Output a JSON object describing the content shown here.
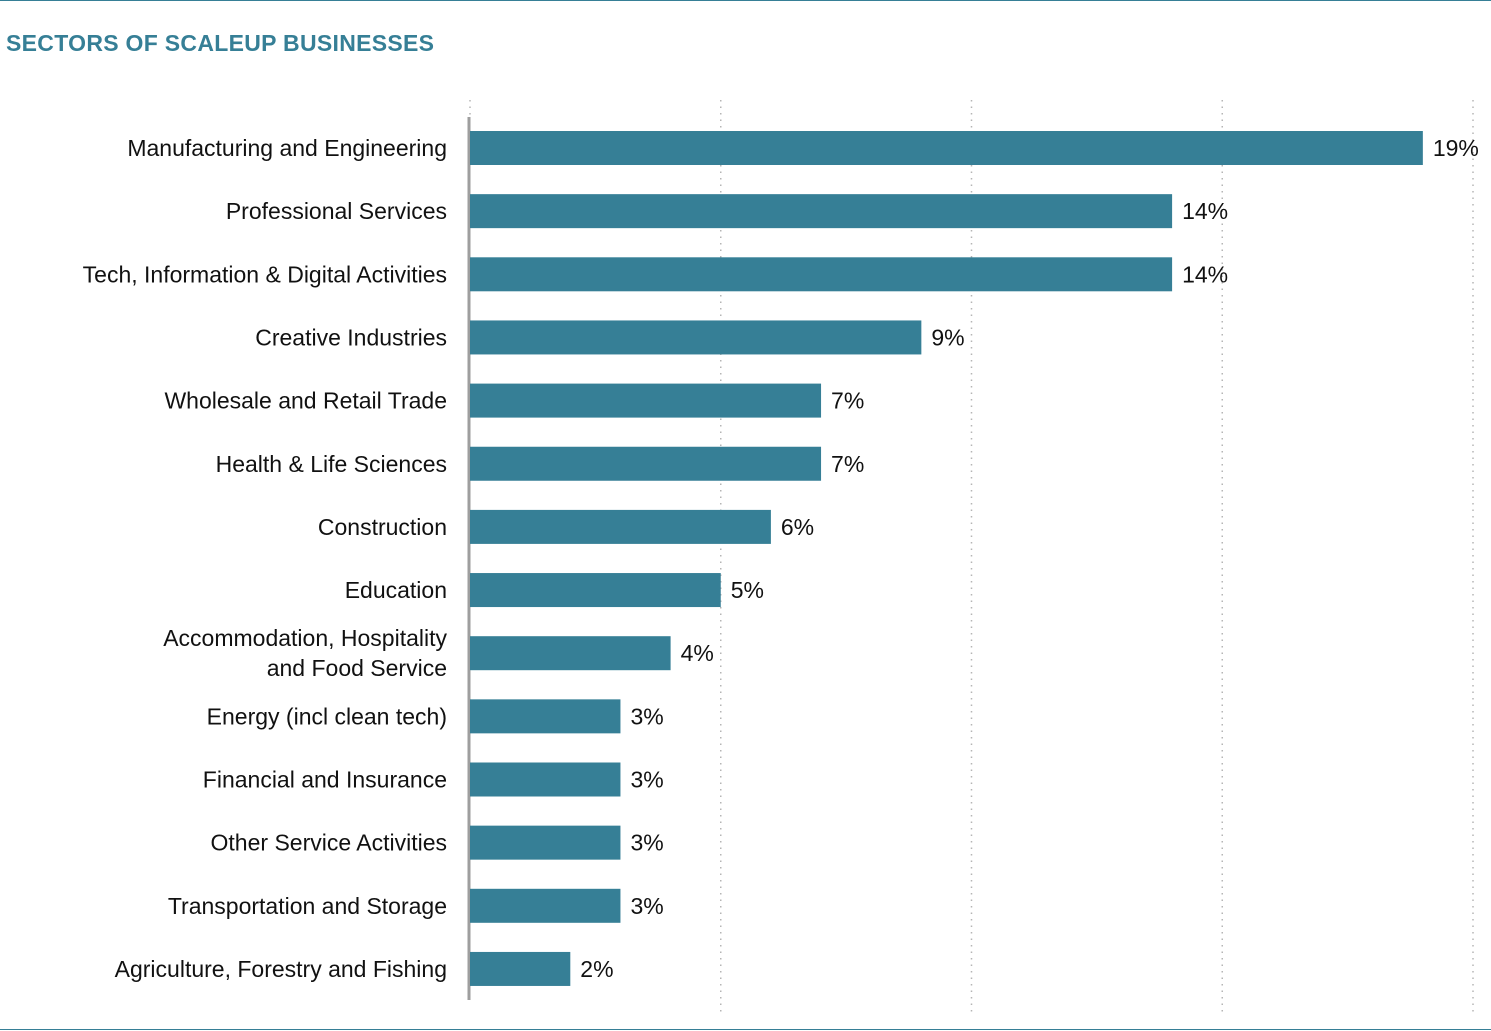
{
  "colors": {
    "bar": "#367f96",
    "title": "#367f96",
    "rule": "#367f96",
    "grid": "#b5b5b5",
    "axis": "#9e9e9e"
  },
  "chart_data": {
    "type": "bar",
    "orientation": "horizontal",
    "title": "SECTORS OF SCALEUP BUSINESSES",
    "xlabel": "",
    "ylabel": "",
    "xlim": [
      0,
      20
    ],
    "grid": "vertical dotted",
    "categories": [
      [
        "Manufacturing and Engineering"
      ],
      [
        "Professional Services"
      ],
      [
        "Tech, Information & Digital Activities"
      ],
      [
        "Creative Industries"
      ],
      [
        "Wholesale and Retail Trade"
      ],
      [
        "Health & Life Sciences"
      ],
      [
        "Construction"
      ],
      [
        "Education"
      ],
      [
        "Accommodation, Hospitality",
        "and Food Service"
      ],
      [
        "Energy (incl clean tech)"
      ],
      [
        "Financial and Insurance"
      ],
      [
        "Other Service Activities"
      ],
      [
        "Transportation and Storage"
      ],
      [
        "Agriculture, Forestry and Fishing"
      ]
    ],
    "values": [
      19,
      14,
      14,
      9,
      7,
      7,
      6,
      5,
      4,
      3,
      3,
      3,
      3,
      2
    ],
    "data_labels": [
      "19%",
      "14%",
      "14%",
      "9%",
      "7%",
      "7%",
      "6%",
      "5%",
      "4%",
      "3%",
      "3%",
      "3%",
      "3%",
      "2%"
    ]
  }
}
